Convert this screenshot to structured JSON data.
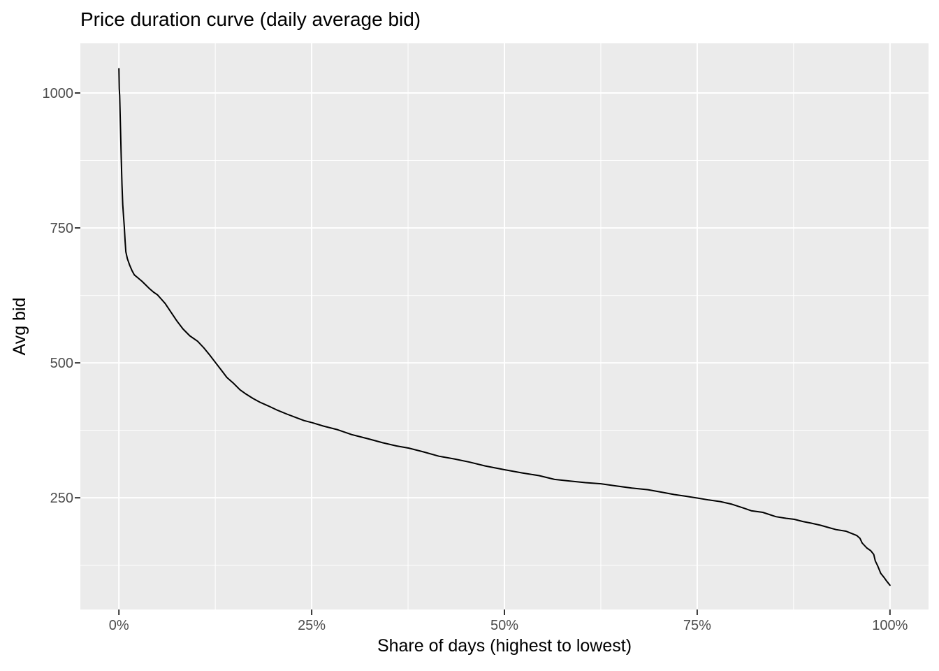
{
  "chart": {
    "title": "Price duration curve (daily average bid)",
    "x_axis": {
      "title": "Share of days (highest to lowest)",
      "tick_labels": [
        "0%",
        "25%",
        "50%",
        "75%",
        "100%"
      ],
      "tick_values": [
        0,
        25,
        50,
        75,
        100
      ],
      "minor_gridline_values": [
        12.5,
        37.5,
        62.5,
        87.5
      ]
    },
    "y_axis": {
      "title": "Avg bid",
      "tick_labels": [
        "250",
        "500",
        "750",
        "1000"
      ],
      "tick_values": [
        250,
        500,
        750,
        1000
      ],
      "minor_gridline_values": [
        125,
        375,
        625,
        875
      ]
    },
    "colors": {
      "page_background": "#FFFFFF",
      "panel_background": "#EBEBEB",
      "gridline": "#FFFFFF",
      "line": "#000000",
      "tick_label": "#4D4D4D",
      "tick_mark": "#333333",
      "title_text": "#000000"
    }
  },
  "chart_data": {
    "type": "line",
    "title": "Price duration curve (daily average bid)",
    "xlabel": "Share of days (highest to lowest)",
    "ylabel": "Avg bid",
    "x_unit": "percent share of days, sorted highest to lowest",
    "xlim": [
      -5,
      105
    ],
    "ylim": [
      43,
      1092
    ],
    "grid": true,
    "legend": false,
    "series": [
      {
        "name": "daily average bid",
        "x": [
          0,
          0.05,
          0.1,
          0.2,
          0.3,
          0.4,
          0.5,
          0.6,
          0.7,
          0.8,
          0.9,
          1.1,
          1.4,
          1.7,
          2,
          2.5,
          3,
          3.5,
          4,
          4.5,
          5,
          5.5,
          6,
          6.8,
          7.5,
          8.3,
          9.2,
          10.2,
          11,
          11.8,
          12.5,
          13.2,
          14,
          14.8,
          15.7,
          16.5,
          17.4,
          18.3,
          19.4,
          20.6,
          21.8,
          23.1,
          24,
          25.1,
          26.5,
          28.4,
          30.2,
          32.4,
          34.2,
          36,
          37.6,
          39.5,
          41.5,
          43.5,
          45.5,
          47.5,
          50,
          52.3,
          54.5,
          56.5,
          58.5,
          60.5,
          62.5,
          64.5,
          66.5,
          68.6,
          70.5,
          72,
          73.4,
          75.2,
          76.5,
          78,
          79.5,
          81,
          82,
          83.5,
          85.2,
          86.5,
          87.6,
          88.7,
          89.8,
          91,
          92,
          93,
          94.3,
          95,
          95.7,
          96.1,
          96.4,
          97,
          97.5,
          97.9,
          98.1,
          98.4,
          98.8,
          99.2,
          99.6,
          100
        ],
        "y": [
          1045,
          1008,
          995,
          938,
          881,
          830,
          793,
          772,
          752,
          727,
          706,
          693,
          681,
          671,
          663,
          657,
          651,
          644,
          637,
          631,
          626,
          618,
          610,
          593,
          578,
          563,
          550,
          540,
          528,
          514,
          501,
          488,
          473,
          463,
          450,
          442,
          434,
          427,
          420,
          412,
          405,
          398,
          393,
          389,
          383,
          376,
          367,
          359,
          352,
          346,
          342,
          335,
          327,
          322,
          316,
          309,
          302,
          296,
          291,
          284,
          281,
          278,
          276,
          272,
          268,
          265,
          260,
          256,
          253,
          249,
          246,
          243,
          238,
          231,
          226,
          223,
          215,
          212,
          210,
          206,
          203,
          199,
          195,
          191,
          188,
          184,
          180,
          175,
          166,
          157,
          152,
          145,
          133,
          124,
          110,
          103,
          95,
          88
        ]
      }
    ]
  }
}
